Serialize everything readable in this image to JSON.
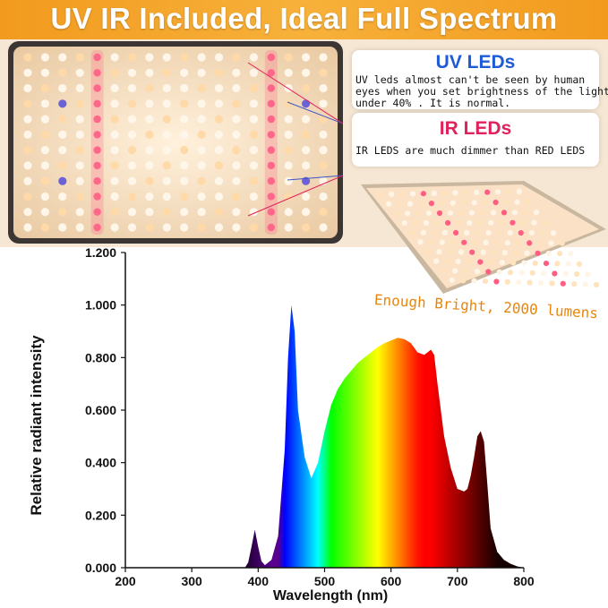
{
  "banner": {
    "title": "UV IR Included, Ideal Full Spectrum",
    "color": "#f29a1e"
  },
  "callouts": {
    "uv": {
      "title": "UV LEDs",
      "color": "#1e5bd6",
      "lines": [
        "UV leds almost can't be seen by human",
        "eyes when you set brightness of the light",
        "under 40% . It is normal."
      ]
    },
    "ir": {
      "title": "IR LEDs",
      "color": "#e0215b",
      "lines": [
        "IR LEDS are much dimmer than RED LEDS"
      ]
    }
  },
  "lumens_text": "Enough Bright, 2000 lumens",
  "chart_data": {
    "type": "area",
    "title": "",
    "xlabel": "Wavelength (nm)",
    "ylabel": "Relative radiant intensity",
    "xlim": [
      200,
      800
    ],
    "ylim": [
      0,
      1.2
    ],
    "x_ticks": [
      "200",
      "300",
      "400",
      "500",
      "600",
      "700",
      "800"
    ],
    "y_ticks": [
      "0.000",
      "0.200",
      "0.400",
      "0.600",
      "0.800",
      "1.000",
      "1.200"
    ],
    "grid": false,
    "fill": "visible spectrum colors by wavelength",
    "series": [
      {
        "x": [
          380,
          385,
          390,
          395,
          400,
          405,
          410,
          420,
          430,
          440,
          445,
          450,
          455,
          460,
          470,
          480,
          490,
          500,
          510,
          520,
          530,
          540,
          550,
          560,
          570,
          580,
          590,
          600,
          610,
          620,
          630,
          640,
          650,
          655,
          660,
          665,
          670,
          680,
          690,
          700,
          710,
          715,
          720,
          725,
          730,
          735,
          740,
          745,
          750,
          760,
          770,
          780,
          790,
          800
        ],
        "y": [
          0.0,
          0.02,
          0.08,
          0.145,
          0.08,
          0.025,
          0.01,
          0.03,
          0.12,
          0.45,
          0.8,
          1.0,
          0.9,
          0.6,
          0.42,
          0.34,
          0.4,
          0.52,
          0.62,
          0.68,
          0.72,
          0.75,
          0.78,
          0.8,
          0.82,
          0.84,
          0.855,
          0.865,
          0.875,
          0.87,
          0.855,
          0.82,
          0.81,
          0.82,
          0.83,
          0.81,
          0.7,
          0.5,
          0.38,
          0.3,
          0.29,
          0.3,
          0.35,
          0.42,
          0.5,
          0.52,
          0.48,
          0.32,
          0.15,
          0.06,
          0.03,
          0.015,
          0.005,
          0.0
        ]
      }
    ]
  }
}
